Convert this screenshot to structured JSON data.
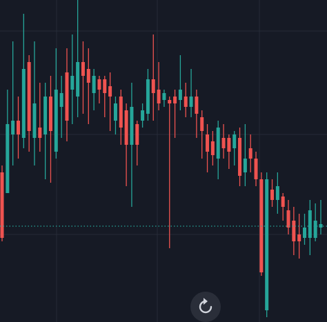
{
  "chart_data": {
    "type": "candlestick",
    "up_color": "#26a69a",
    "down_color": "#ef5350",
    "ylim": [
      0,
      467
    ],
    "yticks": [
      127,
      272,
      422
    ],
    "grid": true,
    "price_line": 139,
    "price_line_color": "#26a69a",
    "open": [
      217,
      187,
      272,
      292,
      267,
      377,
      267,
      282,
      272,
      327,
      247,
      312,
      362,
      337,
      327,
      377,
      367,
      332,
      352,
      352,
      342,
      292,
      327,
      307,
      257,
      287,
      292,
      302,
      352,
      337,
      322,
      322,
      327,
      322,
      327,
      312,
      327,
      297,
      272,
      262,
      237,
      267,
      267,
      252,
      267,
      217,
      252,
      237,
      207,
      17,
      192,
      177,
      182,
      162,
      147,
      127,
      122,
      122,
      122,
      137
    ],
    "high": [
      227,
      337,
      407,
      327,
      447,
      387,
      407,
      347,
      347,
      357,
      397,
      357,
      397,
      417,
      467,
      407,
      397,
      367,
      357,
      357,
      362,
      327,
      337,
      317,
      347,
      292,
      317,
      367,
      417,
      377,
      337,
      327,
      337,
      387,
      347,
      367,
      337,
      307,
      287,
      277,
      292,
      287,
      272,
      277,
      282,
      287,
      272,
      247,
      217,
      217,
      207,
      217,
      187,
      177,
      167,
      157,
      157,
      177,
      172,
      177
    ],
    "low": [
      117,
      187,
      227,
      237,
      252,
      247,
      227,
      247,
      207,
      202,
      237,
      267,
      262,
      287,
      297,
      302,
      287,
      307,
      317,
      297,
      277,
      272,
      257,
      197,
      167,
      227,
      282,
      292,
      292,
      307,
      312,
      107,
      267,
      307,
      297,
      297,
      267,
      237,
      217,
      227,
      207,
      237,
      222,
      227,
      197,
      197,
      217,
      197,
      67,
      7,
      167,
      157,
      147,
      127,
      97,
      92,
      112,
      97,
      117,
      127
    ],
    "close": [
      122,
      287,
      292,
      272,
      367,
      277,
      317,
      267,
      327,
      277,
      337,
      332,
      292,
      357,
      377,
      357,
      347,
      357,
      337,
      332,
      327,
      317,
      282,
      257,
      312,
      257,
      307,
      352,
      332,
      317,
      332,
      317,
      317,
      337,
      312,
      327,
      302,
      277,
      247,
      242,
      282,
      252,
      247,
      272,
      212,
      237,
      237,
      207,
      72,
      207,
      177,
      197,
      167,
      137,
      117,
      117,
      137,
      162,
      147,
      142
    ]
  }
}
